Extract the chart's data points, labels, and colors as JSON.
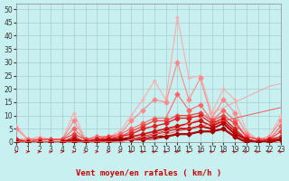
{
  "background_color": "#c8f0f0",
  "grid_color": "#aacccc",
  "xlabel": "Vent moyen/en rafales ( km/h )",
  "xlim": [
    0,
    23
  ],
  "ylim": [
    0,
    52
  ],
  "yticks": [
    0,
    5,
    10,
    15,
    20,
    25,
    30,
    35,
    40,
    45,
    50
  ],
  "xticks": [
    0,
    1,
    2,
    3,
    4,
    5,
    6,
    7,
    8,
    9,
    10,
    11,
    12,
    13,
    14,
    15,
    16,
    17,
    18,
    19,
    20,
    21,
    22,
    23
  ],
  "lines": [
    {
      "color": "#ffaaaa",
      "linewidth": 0.8,
      "marker": "+",
      "markersize": 3.5,
      "y": [
        6,
        1,
        2,
        1,
        1,
        11,
        1,
        2,
        2,
        4,
        10,
        16,
        23,
        16,
        47,
        24,
        25,
        11,
        20,
        16,
        4,
        1,
        2,
        10
      ]
    },
    {
      "color": "#ff8888",
      "linewidth": 0.8,
      "marker": "D",
      "markersize": 2.5,
      "y": [
        5,
        1,
        1,
        1,
        1,
        8,
        1,
        2,
        2,
        3,
        8,
        12,
        16,
        15,
        30,
        16,
        24,
        9,
        16,
        11,
        3,
        1,
        2,
        8
      ]
    },
    {
      "color": "#ff6666",
      "linewidth": 0.8,
      "marker": "D",
      "markersize": 2.5,
      "y": [
        1,
        1,
        1,
        1,
        1,
        5,
        1,
        2,
        2,
        3,
        5,
        7,
        9,
        9,
        18,
        12,
        14,
        8,
        12,
        8,
        2,
        1,
        1,
        6
      ]
    },
    {
      "color": "#ee4444",
      "linewidth": 0.9,
      "marker": "D",
      "markersize": 2.5,
      "y": [
        1,
        0,
        1,
        1,
        1,
        3,
        1,
        1,
        2,
        2,
        4,
        6,
        8,
        8,
        10,
        10,
        11,
        8,
        10,
        7,
        2,
        1,
        1,
        4
      ]
    },
    {
      "color": "#dd2222",
      "linewidth": 1.0,
      "marker": "D",
      "markersize": 2.5,
      "y": [
        1,
        0,
        0,
        0,
        0,
        2,
        0,
        1,
        1,
        2,
        3,
        5,
        6,
        7,
        9,
        9,
        10,
        7,
        9,
        5,
        1,
        0,
        1,
        2
      ]
    },
    {
      "color": "#cc1111",
      "linewidth": 1.2,
      "marker": "D",
      "markersize": 2.5,
      "y": [
        0,
        0,
        0,
        0,
        0,
        1,
        0,
        1,
        1,
        1,
        2,
        3,
        4,
        5,
        6,
        7,
        8,
        6,
        8,
        4,
        1,
        0,
        1,
        1
      ]
    },
    {
      "color": "#bb0000",
      "linewidth": 1.4,
      "marker": "D",
      "markersize": 2.5,
      "y": [
        0,
        0,
        0,
        0,
        0,
        1,
        0,
        0,
        1,
        1,
        1,
        2,
        3,
        4,
        5,
        5,
        6,
        5,
        7,
        3,
        1,
        0,
        0,
        1
      ]
    },
    {
      "color": "#990000",
      "linewidth": 1.6,
      "marker": "D",
      "markersize": 2.5,
      "y": [
        0,
        0,
        0,
        0,
        0,
        0,
        0,
        0,
        0,
        1,
        1,
        1,
        2,
        2,
        3,
        3,
        4,
        4,
        5,
        2,
        0,
        0,
        0,
        1
      ]
    },
    {
      "color": "#cc0000",
      "linewidth": 0.6,
      "marker": null,
      "markersize": 0,
      "y": [
        0,
        0,
        0,
        0,
        0,
        0,
        0,
        0,
        0,
        0,
        1,
        1,
        1,
        2,
        3,
        3,
        4,
        4,
        5,
        2,
        0,
        0,
        0,
        1
      ]
    },
    {
      "color": "#ff4444",
      "linewidth": 0.6,
      "marker": null,
      "markersize": 0,
      "y": [
        0,
        0,
        0,
        0,
        0,
        0,
        0,
        0,
        0,
        0,
        1,
        1,
        2,
        3,
        4,
        5,
        6,
        7,
        8,
        9,
        10,
        11,
        12,
        13
      ]
    },
    {
      "color": "#ff9999",
      "linewidth": 0.6,
      "marker": null,
      "markersize": 0,
      "y": [
        0,
        0,
        0,
        0,
        0,
        0,
        0,
        0,
        0,
        0,
        1,
        2,
        3,
        4,
        5,
        7,
        9,
        11,
        13,
        15,
        17,
        19,
        21,
        22
      ]
    }
  ],
  "arrow_color": "#cc0000",
  "xlabel_fontsize": 6.5,
  "tick_fontsize": 5.5
}
